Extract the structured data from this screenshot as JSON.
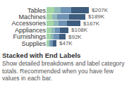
{
  "chart_data": {
    "type": "bar",
    "orientation": "horizontal",
    "stacked": true,
    "title": "Stacked with End Labels",
    "subtitle": "Show detailed breakdowns and label category totals. Recommended when you have few values in each bar.",
    "categories": [
      "Tables",
      "Machines",
      "Accessories",
      "Appliances",
      "Furnishings",
      "Supplies"
    ],
    "series": [
      {
        "color": "#a4d6a7",
        "values": [
          37000,
          28000,
          34000,
          23000,
          20000,
          10000
        ]
      },
      {
        "color": "#8fb9bb",
        "values": [
          32000,
          23000,
          25000,
          18000,
          15000,
          8000
        ]
      },
      {
        "color": "#6f93b4",
        "values": [
          51000,
          58000,
          41000,
          23000,
          27000,
          12000
        ]
      },
      {
        "color": "#3e5d7e",
        "values": [
          87000,
          80000,
          67000,
          44000,
          30000,
          17000
        ]
      }
    ],
    "totals": [
      207000,
      189000,
      167000,
      108000,
      92000,
      47000
    ],
    "total_labels": [
      "$207K",
      "$189K",
      "$167K",
      "$108K",
      "$92K",
      "$47K"
    ],
    "tick_labels": "y",
    "grid": false
  }
}
